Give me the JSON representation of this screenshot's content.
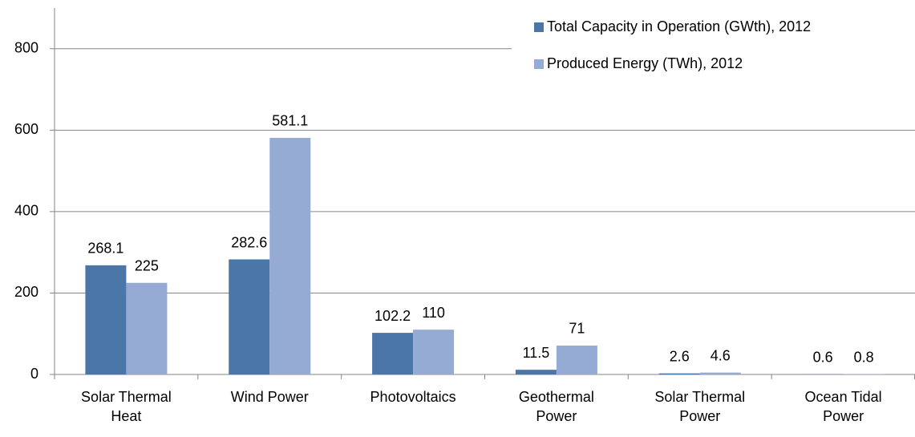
{
  "chart_data": {
    "type": "bar",
    "categories": [
      "Solar Thermal Heat",
      "Wind Power",
      "Photovoltaics",
      "Geothermal Power",
      "Solar Thermal Power",
      "Ocean Tidal Power"
    ],
    "series": [
      {
        "name": "Total Capacity in Operation (GWth), 2012",
        "color": "#4a76a8",
        "values": [
          268.1,
          282.6,
          102.2,
          11.5,
          2.6,
          0.6
        ]
      },
      {
        "name": "Produced Energy (TWh), 2012",
        "color": "#95abd3",
        "values": [
          225,
          581.1,
          110,
          71,
          4.6,
          0.8
        ]
      }
    ],
    "ylim": [
      0,
      900
    ],
    "yticks": [
      0,
      200,
      400,
      600,
      800
    ],
    "grid": true,
    "legend": "top-right"
  }
}
